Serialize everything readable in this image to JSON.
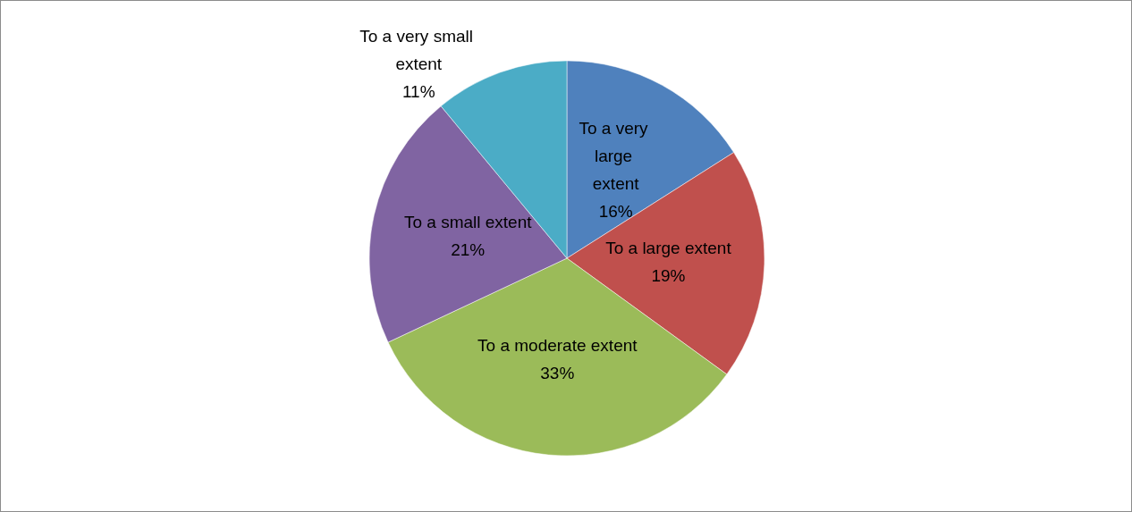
{
  "chart_data": {
    "type": "pie",
    "categories": [
      "To a very large extent",
      "To a large extent",
      "To a moderate extent",
      "To a small extent",
      "To a very small extent"
    ],
    "values": [
      16,
      19,
      33,
      21,
      11
    ],
    "value_labels": [
      "16%",
      "19%",
      "33%",
      "21%",
      "11%"
    ],
    "colors": [
      "#4f81bd",
      "#c0504d",
      "#9bbb59",
      "#8064a2",
      "#4bacc6"
    ]
  }
}
